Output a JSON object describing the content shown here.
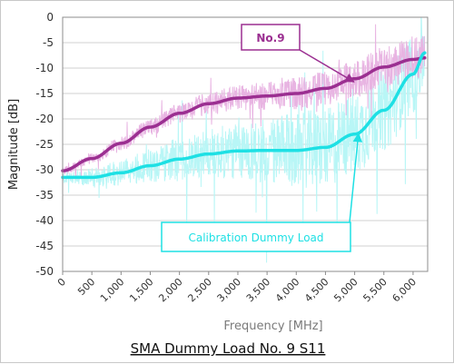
{
  "chart_data": {
    "type": "line",
    "title": "SMA  Dummy  Load  No. 9  S11",
    "xlabel": "Frequency [MHz]",
    "ylabel": "Magnitude [dB]",
    "xlim": [
      0,
      6250
    ],
    "ylim": [
      -50,
      0
    ],
    "x_ticks": [
      "0",
      "500",
      "1,000",
      "1,500",
      "2,000",
      "2,500",
      "3,000",
      "3,500",
      "4,000",
      "4,500",
      "5,000",
      "5,500",
      "6,000"
    ],
    "y_ticks": [
      "0",
      "-5",
      "-10",
      "-15",
      "-20",
      "-25",
      "-30",
      "-35",
      "-40",
      "-45",
      "-50"
    ],
    "grid": true,
    "series": [
      {
        "name": "No.9",
        "raw_color": "#e8b4e2",
        "trend_color": "#9b2f91",
        "x": [
          0,
          500,
          1000,
          1500,
          2000,
          2500,
          3000,
          3500,
          4000,
          4500,
          5000,
          5500,
          6000,
          6200
        ],
        "values": [
          -30.2,
          -27.8,
          -24.8,
          -21.6,
          -18.9,
          -17.0,
          -15.9,
          -15.5,
          -15.0,
          -14.0,
          -12.1,
          -9.8,
          -8.3,
          -8.0
        ]
      },
      {
        "name": "Calibration Dummy Load",
        "raw_color": "#b8f6f6",
        "trend_color": "#1ee0e4",
        "x": [
          0,
          500,
          1000,
          1500,
          2000,
          2500,
          3000,
          3500,
          4000,
          4500,
          5000,
          5500,
          6000,
          6200
        ],
        "values": [
          -31.5,
          -31.5,
          -30.6,
          -29.2,
          -27.9,
          -26.9,
          -26.3,
          -26.2,
          -26.2,
          -25.6,
          -23.0,
          -18.3,
          -11.2,
          -7.0
        ]
      }
    ],
    "annotations": [
      {
        "text": "No.9",
        "series": 0,
        "x": 5050,
        "y": -12.0,
        "color": "#9b2f91"
      },
      {
        "text": "Calibration Dummy Load",
        "series": 1,
        "x": 5050,
        "y": -22.5,
        "color": "#1ee0e4"
      }
    ]
  }
}
